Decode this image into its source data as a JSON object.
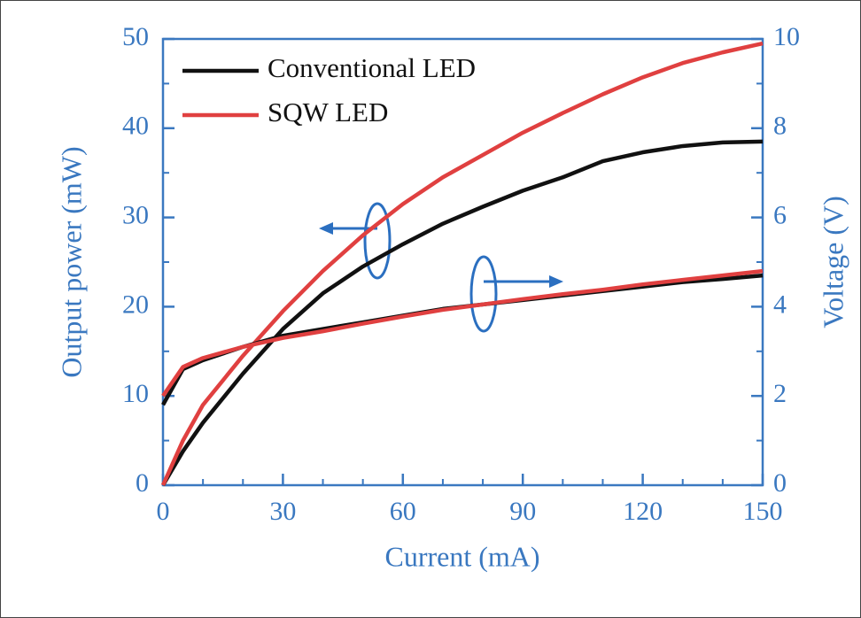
{
  "chart_data": {
    "type": "line",
    "x_label": "Current (mA)",
    "y_label": "Output power (mW)",
    "y2_label": "Voltage (V)",
    "x": [
      0,
      5,
      10,
      20,
      30,
      40,
      50,
      60,
      70,
      80,
      90,
      100,
      110,
      120,
      130,
      140,
      150
    ],
    "series": [
      {
        "name": "Conventional LED",
        "color": "#111111",
        "values": [
          0,
          3.8,
          7,
          12.5,
          17.5,
          21.5,
          24.5,
          27,
          29.3,
          31.2,
          33,
          34.5,
          36.3,
          37.3,
          38,
          38.4,
          38.5
        ]
      },
      {
        "name": "SQW LED",
        "color": "#e04040",
        "values": [
          0,
          5,
          9,
          14.5,
          19.5,
          24,
          28,
          31.5,
          34.5,
          37,
          39.5,
          41.7,
          43.8,
          45.7,
          47.3,
          48.5,
          49.5
        ]
      },
      {
        "color": "#111111",
        "axis": "y2",
        "values": [
          1.8,
          2.6,
          2.8,
          3.1,
          3.35,
          3.5,
          3.65,
          3.8,
          3.95,
          4.05,
          4.15,
          4.25,
          4.35,
          4.45,
          4.55,
          4.62,
          4.7
        ]
      },
      {
        "color": "#e04040",
        "axis": "y2",
        "values": [
          2.0,
          2.65,
          2.85,
          3.1,
          3.3,
          3.45,
          3.62,
          3.78,
          3.93,
          4.05,
          4.17,
          4.28,
          4.38,
          4.5,
          4.6,
          4.7,
          4.8
        ]
      }
    ],
    "xlim": [
      0,
      150
    ],
    "xticks": [
      0,
      30,
      60,
      90,
      120,
      150
    ],
    "ylim": [
      0,
      50
    ],
    "yticks": [
      0,
      10,
      20,
      30,
      40,
      50
    ],
    "y2lim": [
      0,
      10
    ],
    "y2ticks": [
      0,
      2,
      4,
      6,
      8,
      10
    ],
    "axis_color": "#3a78c0"
  }
}
